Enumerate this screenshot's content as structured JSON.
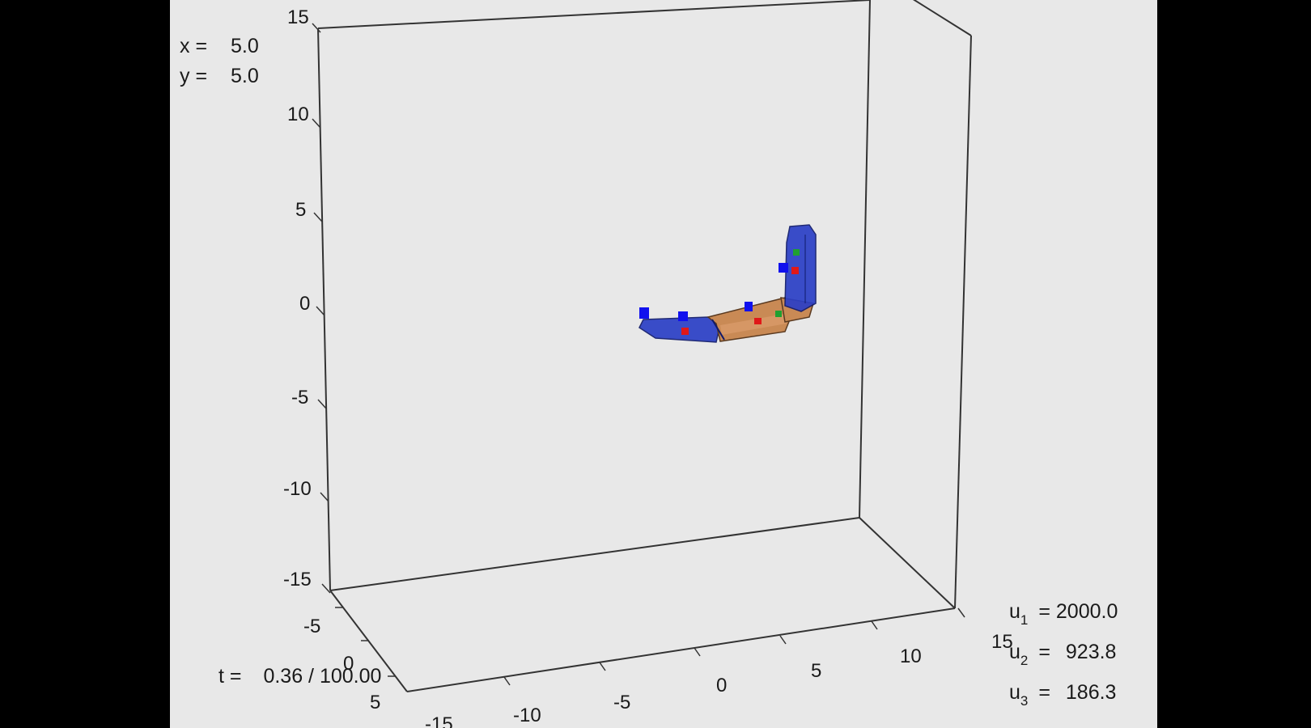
{
  "readouts": {
    "x": {
      "label": "x =",
      "value": "5.0"
    },
    "y": {
      "label": "y =",
      "value": "5.0"
    },
    "t": {
      "label": "t =",
      "value": "0.36 / 100.00"
    }
  },
  "inputs": [
    {
      "sym": "u",
      "sub": "1",
      "eq": "=",
      "value": "2000.0"
    },
    {
      "sym": "u",
      "sub": "2",
      "eq": "=",
      "value": "923.8"
    },
    {
      "sym": "u",
      "sub": "3",
      "eq": "=",
      "value": "186.3"
    }
  ],
  "axes": {
    "z_ticks": [
      "15",
      "10",
      "5",
      "0",
      "-5",
      "-10",
      "-15"
    ],
    "y_ticks": [
      "-5",
      "0",
      "5",
      "-15"
    ],
    "x_ticks": [
      "-10",
      "-5",
      "0",
      "5",
      "10",
      "15"
    ]
  },
  "colors": {
    "background": "#e8e8e8",
    "frame": "#000000",
    "axis_line": "#333333",
    "segment_blue": "#2b3fc6",
    "segment_orange": "#c98a55",
    "marker_blue": "#1010ee",
    "marker_red": "#e01818",
    "marker_green": "#20a030"
  }
}
